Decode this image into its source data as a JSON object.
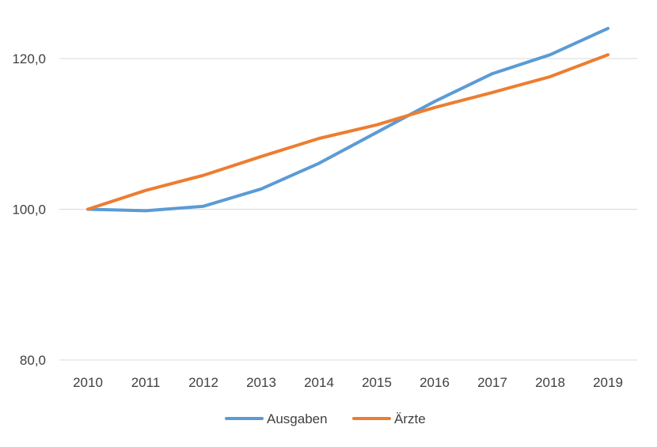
{
  "chart_data": {
    "type": "line",
    "title": "",
    "xlabel": "",
    "ylabel": "",
    "categories": [
      "2010",
      "2011",
      "2012",
      "2013",
      "2014",
      "2015",
      "2016",
      "2017",
      "2018",
      "2019"
    ],
    "ylim": [
      80,
      125
    ],
    "yticks": [
      80,
      100,
      120
    ],
    "ytick_labels": [
      "80,0",
      "100,0",
      "120,0"
    ],
    "grid": true,
    "legend_position": "bottom",
    "series": [
      {
        "name": "Ausgaben",
        "color": "#5B9BD5",
        "values": [
          100.0,
          99.8,
          100.4,
          102.7,
          106.1,
          110.2,
          114.3,
          118.0,
          120.5,
          124.0
        ]
      },
      {
        "name": "Ärzte",
        "color": "#ED7D31",
        "values": [
          100.0,
          102.5,
          104.5,
          107.0,
          109.4,
          111.2,
          113.5,
          115.5,
          117.6,
          120.5
        ]
      }
    ]
  }
}
